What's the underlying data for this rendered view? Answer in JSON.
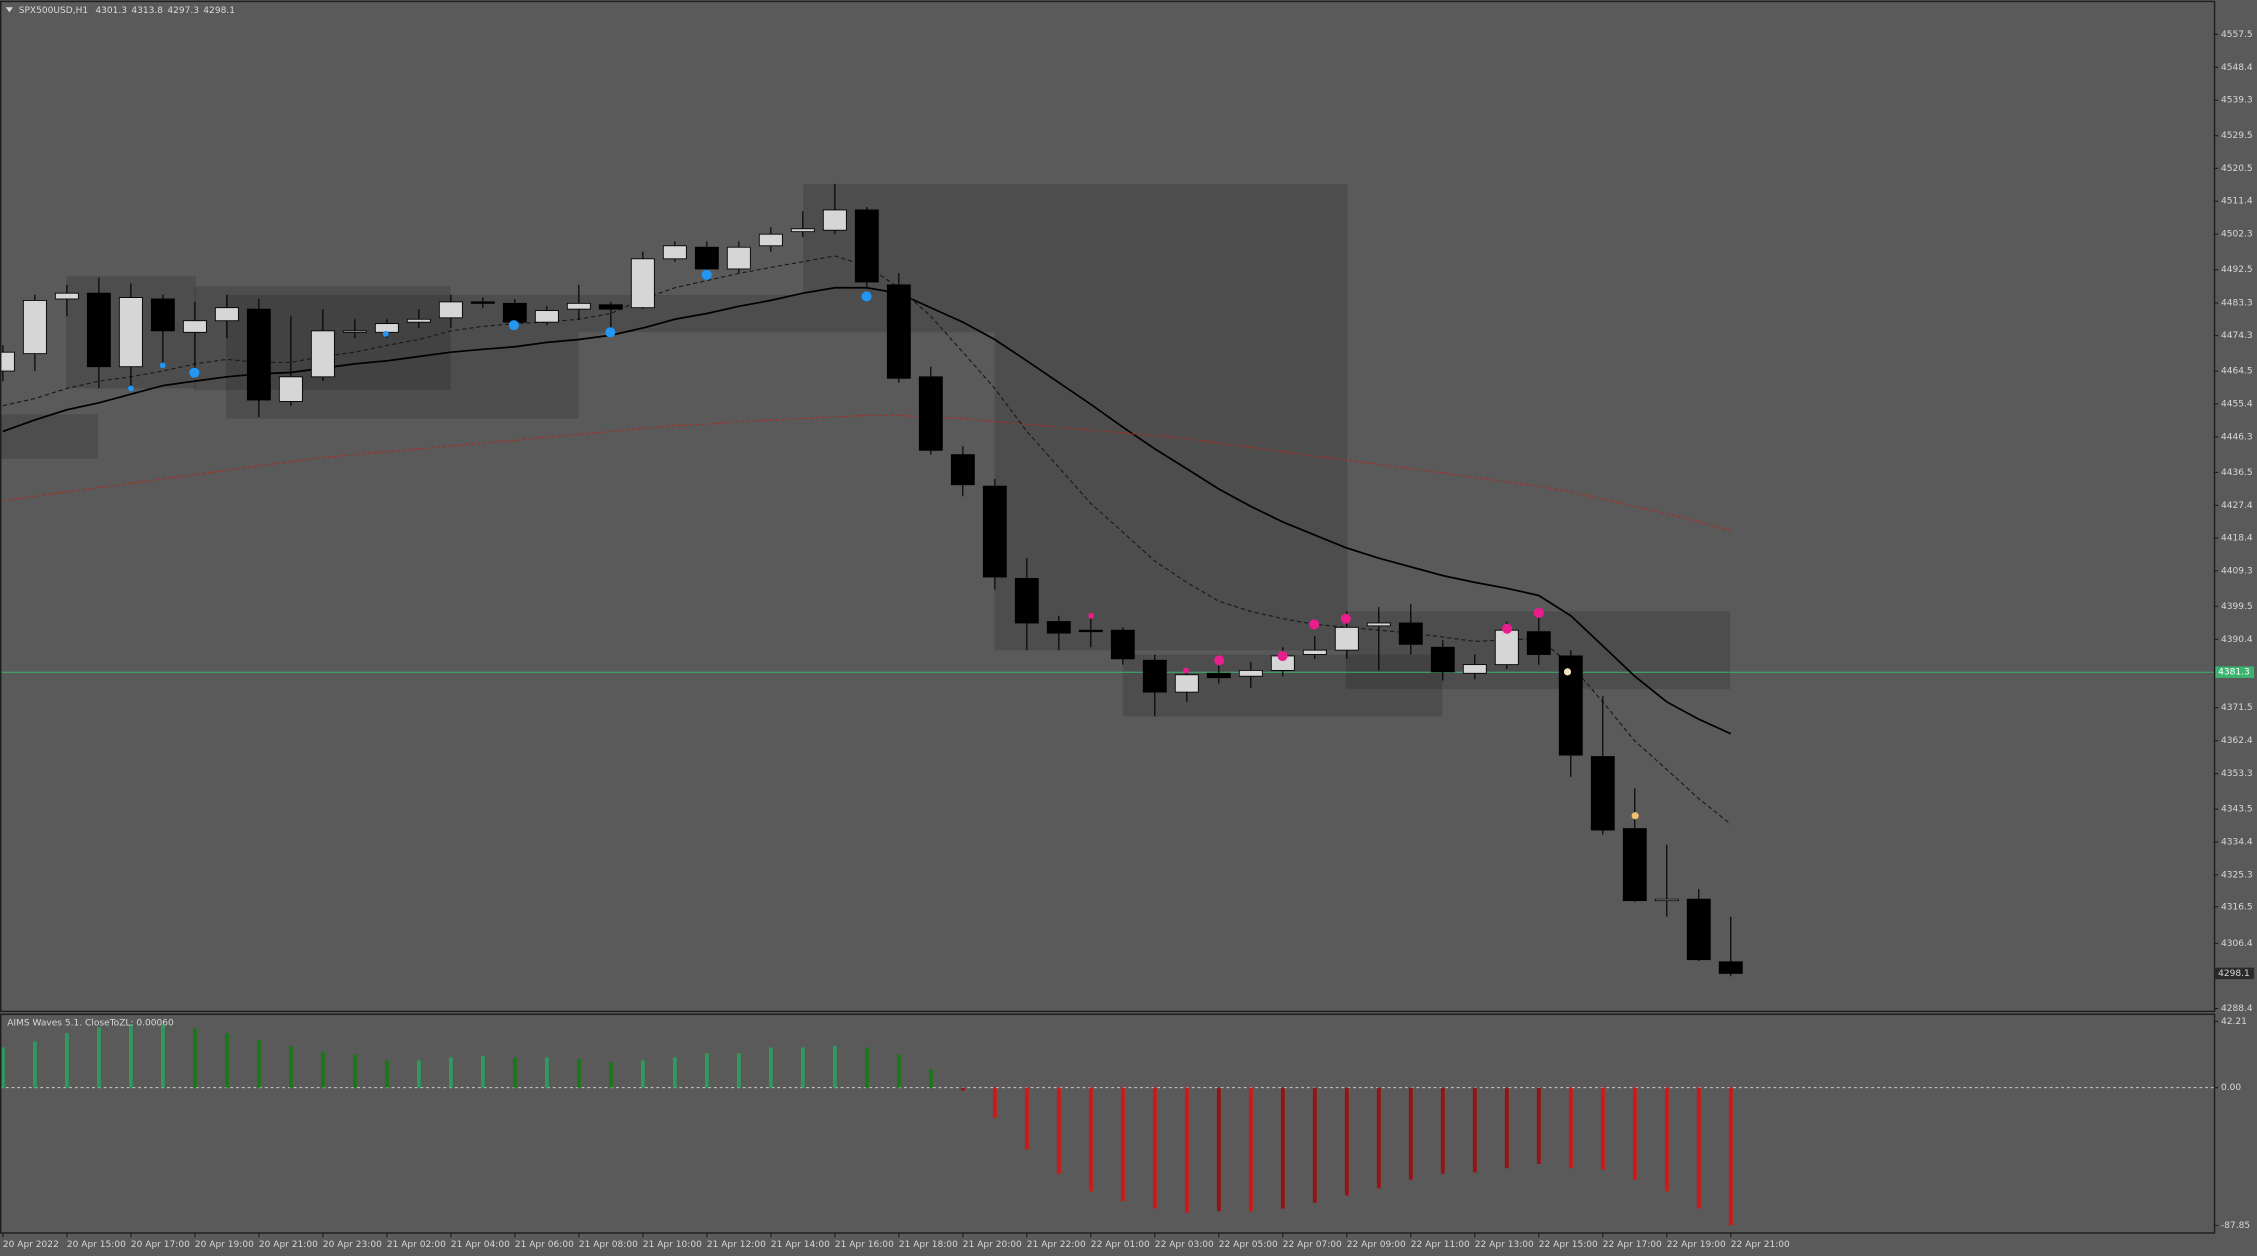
{
  "chart_data": [
    {
      "type": "candlestick",
      "title": "SPX500USD,H1",
      "categories": [
        "20 Apr 2022",
        null,
        "20 Apr 15:00",
        null,
        "20 Apr 17:00",
        null,
        "20 Apr 19:00",
        null,
        "20 Apr 21:00",
        null,
        "20 Apr 23:00",
        null,
        "21 Apr 02:00",
        null,
        "21 Apr 04:00",
        null,
        "21 Apr 06:00",
        null,
        "21 Apr 08:00",
        null,
        "21 Apr 10:00",
        null,
        "21 Apr 12:00",
        null,
        "21 Apr 14:00",
        null,
        "21 Apr 16:00",
        null,
        "21 Apr 18:00",
        null,
        "21 Apr 20:00",
        null,
        "21 Apr 22:00",
        null,
        "22 Apr 01:00",
        null,
        "22 Apr 03:00",
        null,
        "22 Apr 05:00",
        null,
        "22 Apr 07:00",
        null,
        "22 Apr 09:00",
        null,
        "22 Apr 11:00",
        null,
        "22 Apr 13:00",
        null,
        "22 Apr 15:00",
        null,
        "22 Apr 17:00",
        null,
        "22 Apr 19:00",
        null,
        "22 Apr 21:00"
      ],
      "ohlc": [
        [
          4464.5,
          4471.6,
          4461.7,
          4469.7
        ],
        [
          4469.3,
          4485.6,
          4464.5,
          4484.0
        ],
        [
          4484.4,
          4488.3,
          4479.6,
          4486.0
        ],
        [
          4486.0,
          4490.3,
          4459.7,
          4465.7
        ],
        [
          4465.7,
          4488.7,
          4459.7,
          4484.8
        ],
        [
          4484.4,
          4485.6,
          4465.7,
          4475.6
        ],
        [
          4475.2,
          4483.6,
          4463.7,
          4478.4
        ],
        [
          4478.4,
          4485.6,
          4473.6,
          4482.0
        ],
        [
          4481.6,
          4484.4,
          4451.8,
          4456.5
        ],
        [
          4456.1,
          4479.6,
          4454.9,
          4462.9
        ],
        [
          4462.9,
          4481.6,
          4461.7,
          4475.6
        ],
        [
          4475.2,
          4478.8,
          4473.6,
          4475.6
        ],
        [
          4475.2,
          4478.8,
          4473.6,
          4477.6
        ],
        [
          4478.0,
          4481.6,
          4476.4,
          4478.8
        ],
        [
          4479.2,
          4485.6,
          4476.4,
          4483.6
        ],
        [
          4483.6,
          4484.8,
          4482.0,
          4483.2
        ],
        [
          4483.2,
          4484.4,
          4476.0,
          4478.0
        ],
        [
          4478.0,
          4482.4,
          4477.2,
          4481.2
        ],
        [
          4481.6,
          4488.3,
          4478.8,
          4483.2
        ],
        [
          4482.8,
          4483.6,
          4476.4,
          4481.6
        ],
        [
          4482.0,
          4497.5,
          4481.6,
          4495.5
        ],
        [
          4495.5,
          4500.3,
          4494.7,
          4499.1
        ],
        [
          4498.7,
          4500.3,
          4490.7,
          4492.7
        ],
        [
          4492.7,
          4500.3,
          4491.5,
          4498.7
        ],
        [
          4499.1,
          4504.2,
          4497.5,
          4502.3
        ],
        [
          4503.0,
          4508.6,
          4501.5,
          4503.8
        ],
        [
          4503.4,
          4516.2,
          4502.3,
          4509.0
        ],
        [
          4509.0,
          4509.8,
          4487.5,
          4489.1
        ],
        [
          4488.3,
          4491.5,
          4461.3,
          4462.5
        ],
        [
          4462.9,
          4465.7,
          4441.4,
          4442.6
        ],
        [
          4441.4,
          4443.8,
          4429.9,
          4433.1
        ],
        [
          4432.7,
          4434.7,
          4404.1,
          4407.6
        ],
        [
          4407.2,
          4412.8,
          4387.4,
          4394.9
        ],
        [
          4395.3,
          4396.9,
          4387.4,
          4392.1
        ],
        [
          4392.9,
          4396.1,
          4388.2,
          4392.5
        ],
        [
          4392.9,
          4393.7,
          4383.4,
          4385.0
        ],
        [
          4384.6,
          4386.2,
          4369.1,
          4375.8
        ],
        [
          4375.8,
          4382.2,
          4373.1,
          4380.6
        ],
        [
          4381.0,
          4383.4,
          4378.2,
          4379.8
        ],
        [
          4380.2,
          4384.2,
          4377.0,
          4381.8
        ],
        [
          4381.8,
          4388.2,
          4380.2,
          4385.8
        ],
        [
          4386.2,
          4391.3,
          4385.0,
          4387.4
        ],
        [
          4387.4,
          4398.1,
          4385.0,
          4393.7
        ],
        [
          4394.1,
          4399.3,
          4381.8,
          4394.9
        ],
        [
          4394.9,
          4400.1,
          4386.2,
          4389.0
        ],
        [
          4388.2,
          4390.2,
          4379.0,
          4381.4
        ],
        [
          4381.0,
          4386.2,
          4379.4,
          4383.4
        ],
        [
          4383.4,
          4395.3,
          4382.2,
          4392.9
        ],
        [
          4392.5,
          4396.9,
          4383.4,
          4386.2
        ],
        [
          4385.8,
          4387.4,
          4352.4,
          4358.4
        ],
        [
          4358.0,
          4374.7,
          4336.5,
          4337.7
        ],
        [
          4338.1,
          4349.2,
          4317.8,
          4318.2
        ],
        [
          4318.2,
          4333.7,
          4313.8,
          4318.6
        ],
        [
          4318.6,
          4321.4,
          4301.5,
          4301.9
        ],
        [
          4301.3,
          4313.8,
          4297.3,
          4298.1
        ]
      ],
      "up_color": "#d6d6d6",
      "down_color": "#000000",
      "series": [
        {
          "color": "#000000",
          "dash": "none",
          "values": [
            4447.8,
            4451.0,
            4453.8,
            4455.7,
            4458.1,
            4460.5,
            4461.7,
            4462.9,
            4463.7,
            4464.1,
            4465.3,
            4466.5,
            4467.3,
            4468.5,
            4469.7,
            4470.5,
            4471.2,
            4472.4,
            4473.2,
            4474.4,
            4476.4,
            4478.8,
            4480.4,
            4482.4,
            4484.0,
            4486.0,
            4487.5,
            4487.5,
            4486.0,
            4482.0,
            4478.0,
            4473.2,
            4467.3,
            4461.3,
            4455.3,
            4449.0,
            4443.0,
            4437.5,
            4431.9,
            4427.1,
            4422.8,
            4419.2,
            4415.6,
            4412.8,
            4410.4,
            4408.0,
            4406.1,
            4404.5,
            4402.5,
            4396.9,
            4388.6,
            4380.2,
            4373.1,
            4368.3,
            4364.3
          ]
        },
        {
          "color": "#1a1a1a",
          "dash": "3,2",
          "values": [
            4454.9,
            4456.9,
            4459.7,
            4461.7,
            4462.9,
            4464.5,
            4466.5,
            4467.7,
            4466.9,
            4466.9,
            4468.5,
            4469.7,
            4471.6,
            4473.2,
            4475.6,
            4476.8,
            4477.6,
            4478.0,
            4478.8,
            4480.4,
            4484.4,
            4487.5,
            4489.5,
            4491.5,
            4493.1,
            4494.7,
            4496.3,
            4493.5,
            4487.5,
            4479.6,
            4469.7,
            4459.7,
            4447.8,
            4437.9,
            4427.9,
            4420.0,
            4412.0,
            4406.1,
            4400.9,
            4398.1,
            4396.1,
            4394.5,
            4393.7,
            4392.9,
            4392.1,
            4391.0,
            4389.8,
            4390.2,
            4390.6,
            4383.4,
            4373.1,
            4362.3,
            4354.4,
            4346.4,
            4339.3
          ]
        },
        {
          "color": "#b02a1e",
          "dash": "2,2",
          "values": [
            4428.7,
            4429.9,
            4431.1,
            4432.3,
            4433.5,
            4434.7,
            4435.9,
            4437.1,
            4438.3,
            4439.4,
            4440.6,
            4441.4,
            4442.2,
            4443.0,
            4443.8,
            4444.6,
            4445.4,
            4446.2,
            4447.0,
            4447.8,
            4448.6,
            4449.4,
            4449.8,
            4450.6,
            4451.0,
            4451.4,
            4451.8,
            4452.2,
            4452.2,
            4451.8,
            4451.4,
            4450.6,
            4449.8,
            4449.0,
            4448.2,
            4447.4,
            4446.6,
            4445.8,
            4444.6,
            4443.4,
            4442.2,
            4441.0,
            4439.8,
            4438.7,
            4437.5,
            4436.3,
            4435.1,
            4433.9,
            4432.7,
            4431.1,
            4429.1,
            4427.1,
            4425.1,
            4422.8,
            4420.4
          ]
        }
      ],
      "level_line": 4381.3,
      "level_color": "#3cb371",
      "ylim": [
        4287.6,
        4566.2
      ],
      "yticks": [
        4557.5,
        4548.4,
        4539.3,
        4529.5,
        4520.5,
        4511.4,
        4502.3,
        4492.5,
        4483.3,
        4474.3,
        4464.5,
        4455.4,
        4446.3,
        4436.5,
        4427.4,
        4418.4,
        4409.3,
        4399.5,
        4390.4,
        4371.5,
        4362.4,
        4353.3,
        4343.5,
        4334.4,
        4325.3,
        4316.5,
        4306.4,
        4288.4
      ]
    },
    {
      "type": "histogram",
      "title": "AIMS Waves 5.1. CloseToZL: 0.00060",
      "values": [
        25.7,
        29.4,
        34.9,
        38.5,
        40.4,
        40.4,
        37.6,
        34.9,
        30.3,
        26.6,
        22.9,
        21.1,
        17.4,
        17.4,
        19.3,
        20.2,
        19.3,
        19.3,
        18.3,
        16.5,
        17.4,
        19.3,
        22.0,
        22.0,
        25.7,
        25.7,
        26.6,
        25.7,
        21.1,
        11.9,
        -1.8,
        -19.3,
        -39.4,
        -55.0,
        -66.1,
        -72.5,
        -77.1,
        -79.8,
        -78.9,
        -78.9,
        -77.1,
        -73.4,
        -68.8,
        -64.2,
        -58.7,
        -55.0,
        -54.1,
        -51.4,
        -48.6,
        -51.4,
        -52.3,
        -58.7,
        -66.1,
        -77.1,
        -87.85
      ],
      "colors": {
        "pos_grow": "#2e9a5c",
        "pos_fade": "#157a15",
        "neg_grow": "#d81414",
        "neg_fade": "#9c1010"
      },
      "zero_line": true,
      "ylim": [
        -92.7,
        46.8
      ],
      "yticks": [
        42.21,
        {
          "value": 0,
          "label": "0.00"
        },
        -87.85
      ]
    }
  ]
}
